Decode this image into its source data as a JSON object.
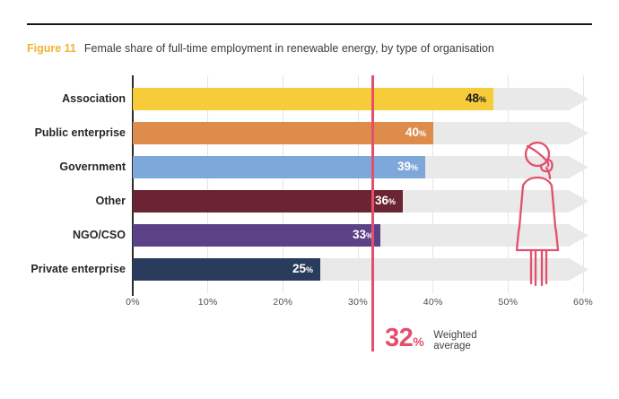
{
  "page": {
    "figure_label": "Figure 11",
    "figure_title": "Female share of full-time employment in renewable energy, by type of organisation"
  },
  "chart_data": {
    "type": "bar",
    "orientation": "horizontal",
    "title": "Female share of full-time employment in renewable energy, by type of organisation",
    "categories": [
      "Association",
      "Public enterprise",
      "Government",
      "Other",
      "NGO/CSO",
      "Private enterprise"
    ],
    "values": [
      48,
      40,
      39,
      36,
      33,
      25
    ],
    "unit": "%",
    "value_labels": [
      "48%",
      "40%",
      "39%",
      "36%",
      "33%",
      "25%"
    ],
    "bar_colors": [
      "#F6CC3B",
      "#DE8C4B",
      "#7FA8DA",
      "#6B2431",
      "#5B4286",
      "#2A3C5D"
    ],
    "value_label_colors": [
      "#1A1A1A",
      "#FFFFFF",
      "#FFFFFF",
      "#FFFFFF",
      "#FFFFFF",
      "#FFFFFF"
    ],
    "xlim": [
      0,
      60
    ],
    "x_ticks": [
      "0%",
      "10%",
      "20%",
      "30%",
      "40%",
      "50%",
      "60%"
    ],
    "grid": true,
    "track_color": "#E9E9E9",
    "weighted_average": {
      "value": 32,
      "display_value": "32",
      "display_unit": "%",
      "label_lines": [
        "Weighted",
        "average"
      ],
      "color": "#E2506C"
    },
    "annotation_icon": "female-figure-icon"
  },
  "colors": {
    "accent_pink": "#E2506C",
    "figure_label_gold": "#F0B32C",
    "axis_line": "#2C2C2C",
    "gridline": "#E4E4E4",
    "tick_text": "#4D4D4D",
    "track": "#E9E9E9"
  }
}
